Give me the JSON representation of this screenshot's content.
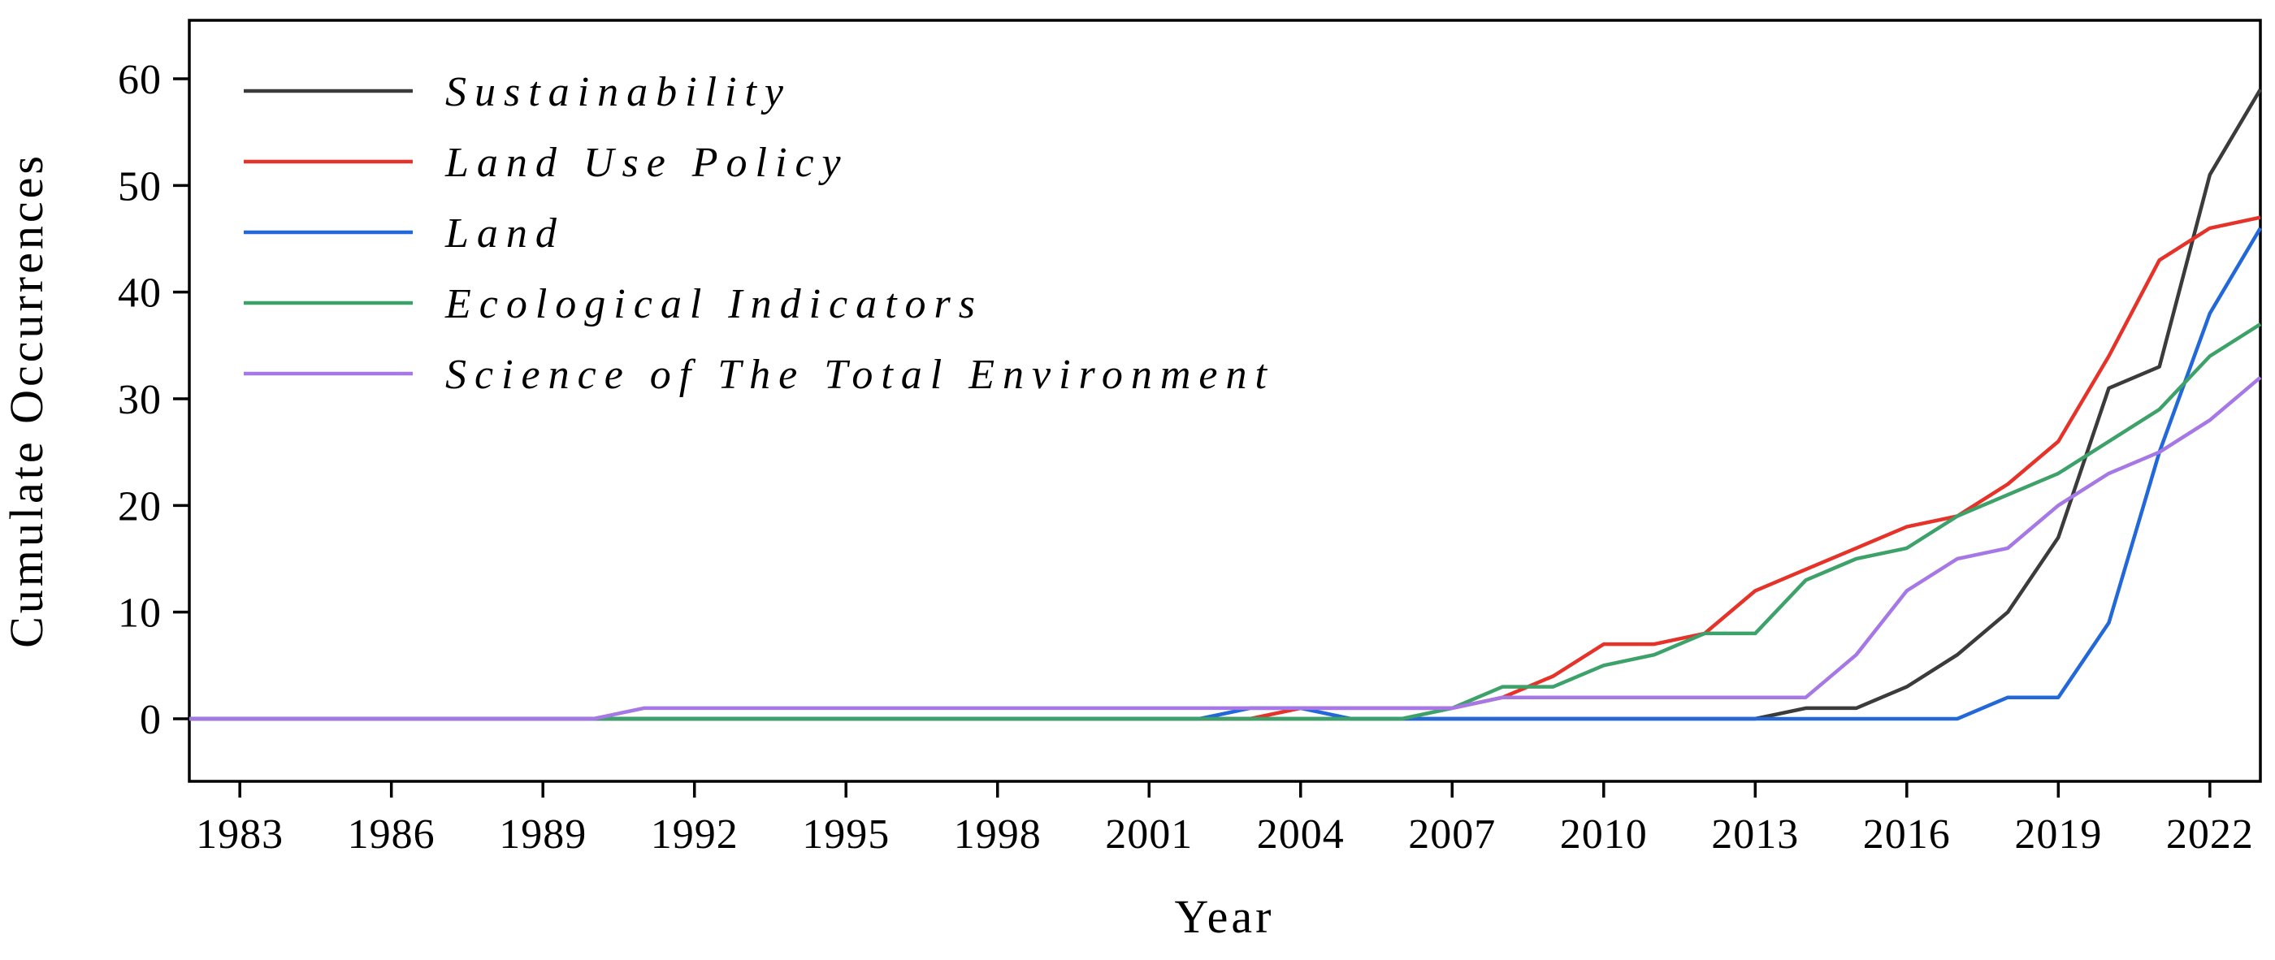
{
  "figure": {
    "background": "#ffffff",
    "axis_color": "#000000",
    "text_color": "#000000"
  },
  "chart_data": {
    "type": "line",
    "title": "",
    "xlabel": "Year",
    "ylabel": "Cumulate Occurrences",
    "x_range": [
      1982,
      2023
    ],
    "y_range": [
      0,
      60
    ],
    "xticks": [
      1983,
      1986,
      1989,
      1992,
      1995,
      1998,
      2001,
      2004,
      2007,
      2010,
      2013,
      2016,
      2019,
      2022
    ],
    "yticks": [
      0,
      10,
      20,
      30,
      40,
      50,
      60
    ],
    "grid": false,
    "legend_position": "top-left",
    "x": [
      1982,
      1983,
      1984,
      1985,
      1986,
      1987,
      1988,
      1989,
      1990,
      1991,
      1992,
      1993,
      1994,
      1995,
      1996,
      1997,
      1998,
      1999,
      2000,
      2001,
      2002,
      2003,
      2004,
      2005,
      2006,
      2007,
      2008,
      2009,
      2010,
      2011,
      2012,
      2013,
      2014,
      2015,
      2016,
      2017,
      2018,
      2019,
      2020,
      2021,
      2022,
      2023
    ],
    "series": [
      {
        "name": "Sustainability",
        "color": "#3b3b3b",
        "values": [
          0,
          0,
          0,
          0,
          0,
          0,
          0,
          0,
          0,
          0,
          0,
          0,
          0,
          0,
          0,
          0,
          0,
          0,
          0,
          0,
          0,
          0,
          0,
          0,
          0,
          0,
          0,
          0,
          0,
          0,
          0,
          0,
          1,
          1,
          3,
          6,
          10,
          17,
          31,
          33,
          51,
          59
        ]
      },
      {
        "name": "Land Use Policy",
        "color": "#e63329",
        "values": [
          0,
          0,
          0,
          0,
          0,
          0,
          0,
          0,
          0,
          0,
          0,
          0,
          0,
          0,
          0,
          0,
          0,
          0,
          0,
          0,
          0,
          0,
          1,
          1,
          1,
          1,
          2,
          4,
          7,
          7,
          8,
          12,
          14,
          16,
          18,
          19,
          22,
          26,
          34,
          43,
          46,
          47
        ]
      },
      {
        "name": "Land",
        "color": "#2268d8",
        "values": [
          0,
          0,
          0,
          0,
          0,
          0,
          0,
          0,
          0,
          0,
          0,
          0,
          0,
          0,
          0,
          0,
          0,
          0,
          0,
          0,
          0,
          1,
          1,
          0,
          0,
          0,
          0,
          0,
          0,
          0,
          0,
          0,
          0,
          0,
          0,
          0,
          2,
          2,
          9,
          25,
          38,
          46
        ]
      },
      {
        "name": "Ecological Indicators",
        "color": "#3da269",
        "values": [
          0,
          0,
          0,
          0,
          0,
          0,
          0,
          0,
          0,
          0,
          0,
          0,
          0,
          0,
          0,
          0,
          0,
          0,
          0,
          0,
          0,
          0,
          0,
          0,
          0,
          1,
          3,
          3,
          5,
          6,
          8,
          8,
          13,
          15,
          16,
          19,
          21,
          23,
          26,
          29,
          34,
          37
        ]
      },
      {
        "name": "Science of The Total Environment",
        "color": "#a678e6",
        "values": [
          0,
          0,
          0,
          0,
          0,
          0,
          0,
          0,
          0,
          1,
          1,
          1,
          1,
          1,
          1,
          1,
          1,
          1,
          1,
          1,
          1,
          1,
          1,
          1,
          1,
          1,
          2,
          2,
          2,
          2,
          2,
          2,
          2,
          6,
          12,
          15,
          16,
          20,
          23,
          25,
          28,
          32
        ]
      }
    ]
  }
}
